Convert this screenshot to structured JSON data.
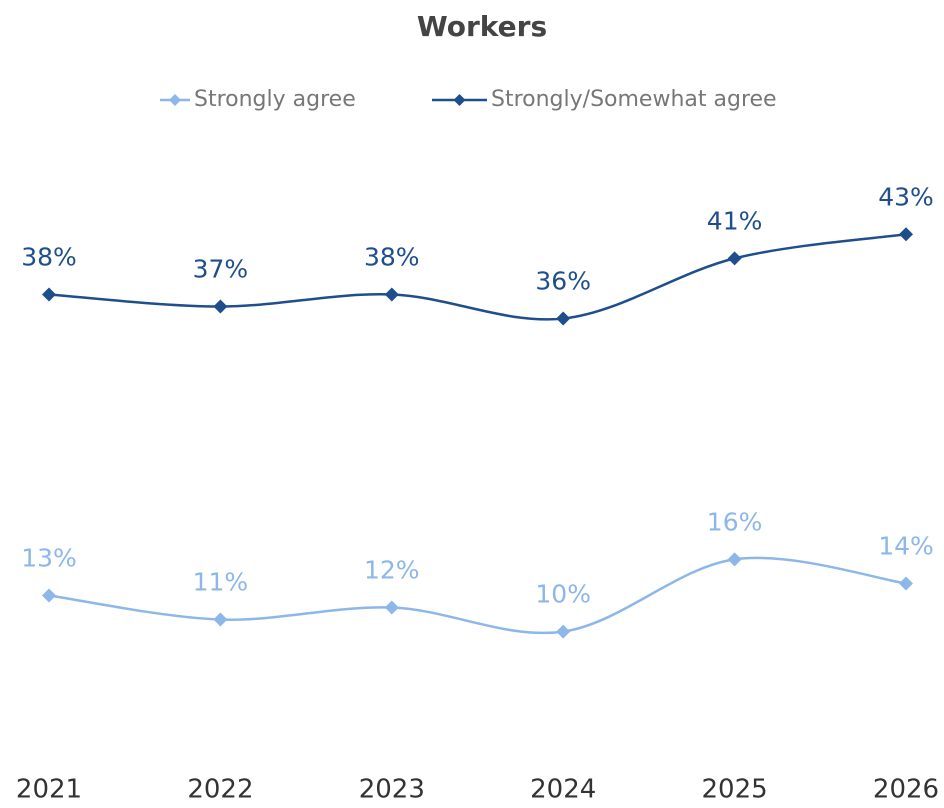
{
  "chart_data": {
    "type": "line",
    "title": "Workers",
    "categories": [
      "2021",
      "2022",
      "2023",
      "2024",
      "2025",
      "2026"
    ],
    "series": [
      {
        "name": "Strongly agree",
        "color": "#8db7e8",
        "values": [
          13,
          11,
          12,
          10,
          16,
          14
        ],
        "value_labels": [
          "13%",
          "11%",
          "12%",
          "10%",
          "16%",
          "14%"
        ]
      },
      {
        "name": "Strongly/Somewhat agree",
        "color": "#1f4e8c",
        "values": [
          38,
          37,
          38,
          36,
          41,
          43
        ],
        "value_labels": [
          "38%",
          "37%",
          "38%",
          "36%",
          "41%",
          "43%"
        ]
      }
    ],
    "ylim": [
      0,
      50
    ],
    "legend": "top"
  }
}
